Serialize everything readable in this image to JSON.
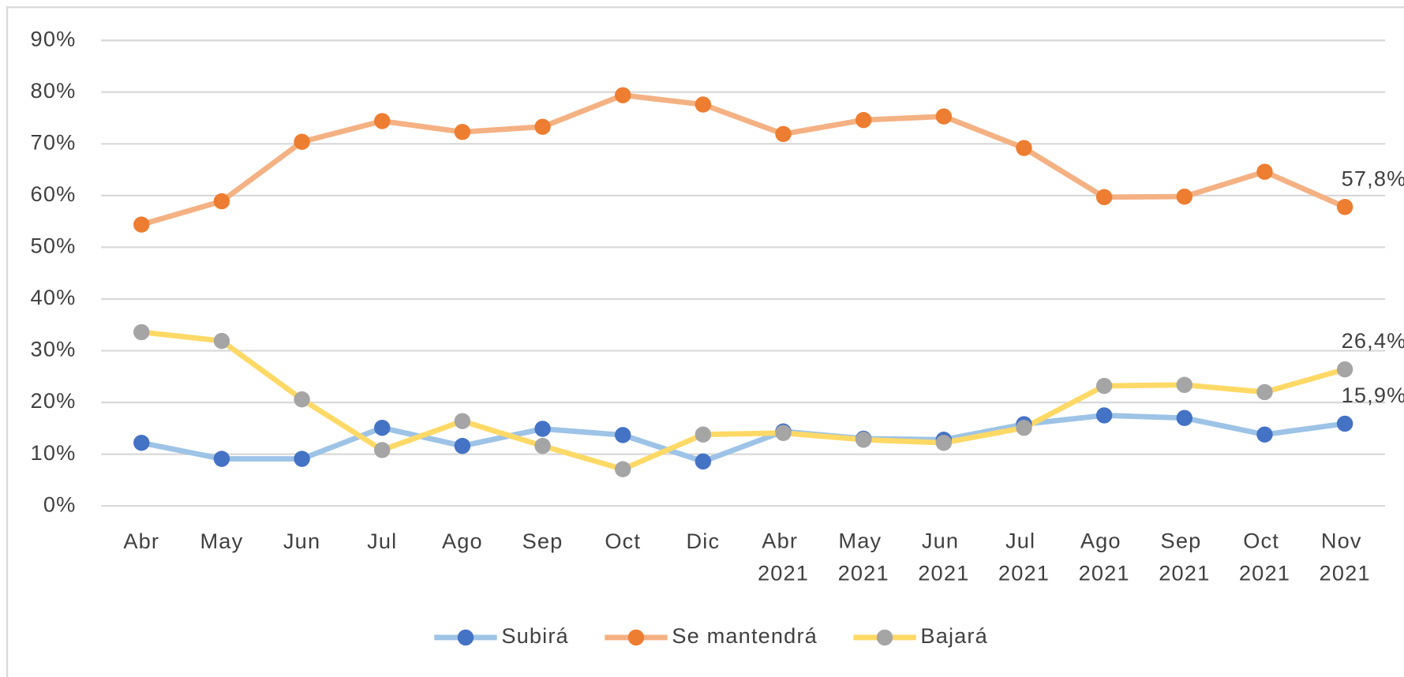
{
  "chart_data": {
    "type": "line",
    "categories": [
      "Abr",
      "May",
      "Jun",
      "Jul",
      "Ago",
      "Sep",
      "Oct",
      "Dic",
      "Abr 2021",
      "May 2021",
      "Jun 2021",
      "Jul 2021",
      "Ago 2021",
      "Sep 2021",
      "Oct 2021",
      "Nov 2021"
    ],
    "ylim": [
      0,
      90
    ],
    "yticks": [
      {
        "value": 0,
        "label": "0%"
      },
      {
        "value": 10,
        "label": "10%"
      },
      {
        "value": 20,
        "label": "20%"
      },
      {
        "value": 30,
        "label": "30%"
      },
      {
        "value": 40,
        "label": "40%"
      },
      {
        "value": 50,
        "label": "50%"
      },
      {
        "value": 60,
        "label": "60%"
      },
      {
        "value": 70,
        "label": "70%"
      },
      {
        "value": 80,
        "label": "80%"
      },
      {
        "value": 90,
        "label": "90%"
      }
    ],
    "grid": true,
    "legend": "bottom",
    "series": [
      {
        "name": "Subirá",
        "color": "#4472c4",
        "line_color": "#9dc3e6",
        "values": [
          12.2,
          9.1,
          9.1,
          15.1,
          11.6,
          14.9,
          13.7,
          8.6,
          14.4,
          13.0,
          12.8,
          15.8,
          17.5,
          17.0,
          13.8,
          15.9
        ],
        "value_labels": [
          null,
          null,
          null,
          null,
          null,
          null,
          null,
          null,
          null,
          null,
          null,
          null,
          null,
          null,
          null,
          "15,9%"
        ]
      },
      {
        "name": "Se mantendrá",
        "color": "#ed7d31",
        "line_color": "#f4b183",
        "values": [
          54.4,
          58.9,
          70.4,
          74.4,
          72.3,
          73.3,
          79.4,
          77.6,
          71.9,
          74.6,
          75.3,
          69.2,
          59.7,
          59.8,
          64.6,
          57.8
        ],
        "value_labels": [
          null,
          null,
          null,
          null,
          null,
          null,
          null,
          null,
          null,
          null,
          null,
          null,
          null,
          null,
          null,
          "57,8%"
        ]
      },
      {
        "name": "Bajará",
        "color": "#a5a5a5",
        "line_color": "#ffd966",
        "values": [
          33.6,
          31.9,
          20.6,
          10.8,
          16.4,
          11.6,
          7.1,
          13.8,
          14.1,
          12.8,
          12.2,
          15.1,
          23.2,
          23.4,
          22.0,
          26.4
        ],
        "value_labels": [
          null,
          null,
          null,
          null,
          null,
          null,
          null,
          null,
          null,
          null,
          null,
          null,
          null,
          null,
          null,
          "26,4%"
        ]
      }
    ]
  }
}
